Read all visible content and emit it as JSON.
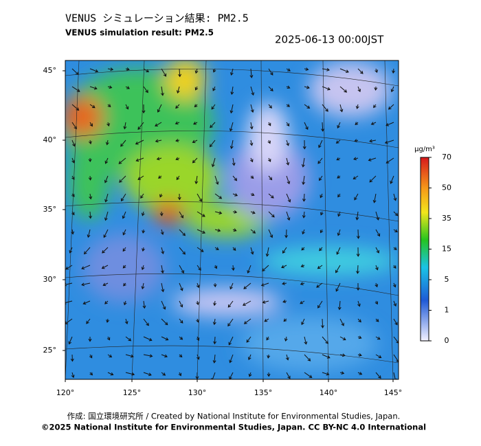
{
  "header": {
    "title": "VENUS シミュレーション結果: PM2.5",
    "subtitle": "VENUS simulation result: PM2.5",
    "datetime": "2025-06-13 00:00JST"
  },
  "map": {
    "lat_labels": [
      "45°",
      "40°",
      "35°",
      "30°",
      "25°"
    ],
    "lon_labels": [
      "120°",
      "125°",
      "130°",
      "135°",
      "140°",
      "145°"
    ]
  },
  "colorbar": {
    "unit": "μg/m³",
    "ticks": [
      "70",
      "50",
      "35",
      "15",
      "5",
      "1",
      "0"
    ]
  },
  "footer": {
    "credit": "作成: 国立環境研究所 / Created by National Institute for Environmental Studies, Japan.",
    "copyright": "©2025 National Institute for Environmental Studies, Japan. CC BY-NC 4.0 International"
  }
}
